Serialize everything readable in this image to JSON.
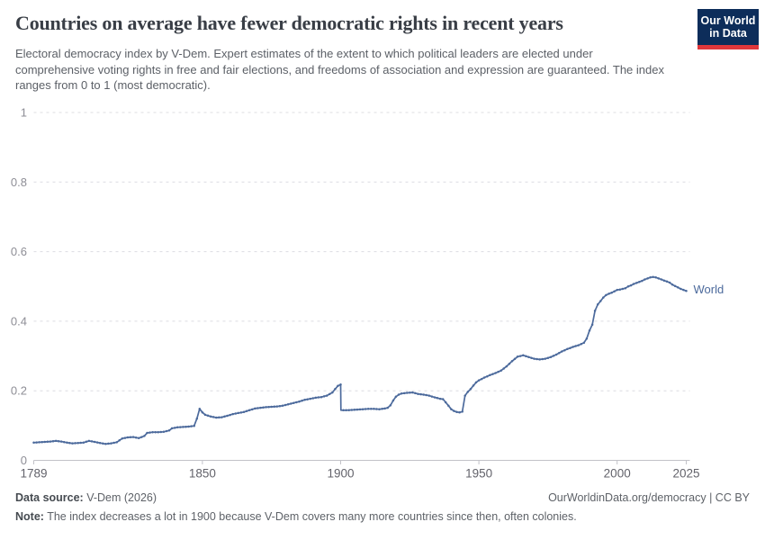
{
  "header": {
    "title": "Countries on average have fewer democratic rights in recent years",
    "subtitle": "Electoral democracy index by V-Dem. Expert estimates of the extent to which political leaders are elected under comprehensive voting rights in free and fair elections, and freedoms of association and expression are guaranteed. The index ranges from 0 to 1 (most democratic).",
    "logo": {
      "line1": "Our World",
      "line2": "in Data",
      "bg_color": "#0d2d5a",
      "accent_color": "#e0373b"
    }
  },
  "chart_data": {
    "type": "line",
    "title": "Countries on average have fewer democratic rights in recent years",
    "xlabel": "",
    "ylabel": "Electoral democracy index",
    "xlim": [
      1789,
      2025
    ],
    "ylim": [
      0,
      1
    ],
    "x_ticks": [
      1789,
      1850,
      1900,
      1950,
      2000,
      2025
    ],
    "y_ticks": [
      0,
      0.2,
      0.4,
      0.6,
      0.8,
      1
    ],
    "grid": "horizontal-dashed",
    "legend_position": "label-at-line-end",
    "colors": {
      "gridline": "#dcdce2",
      "axis": "#c2c2c8",
      "y_tick_label": "#8e8e96",
      "x_tick_label": "#63636b"
    },
    "series": [
      {
        "name": "World",
        "color": "#4c6a9c",
        "points": [
          [
            1789,
            0.051
          ],
          [
            1791,
            0.052
          ],
          [
            1793,
            0.053
          ],
          [
            1795,
            0.054
          ],
          [
            1797,
            0.056
          ],
          [
            1799,
            0.054
          ],
          [
            1801,
            0.051
          ],
          [
            1803,
            0.049
          ],
          [
            1805,
            0.05
          ],
          [
            1807,
            0.051
          ],
          [
            1809,
            0.056
          ],
          [
            1811,
            0.053
          ],
          [
            1813,
            0.05
          ],
          [
            1815,
            0.047
          ],
          [
            1817,
            0.049
          ],
          [
            1819,
            0.052
          ],
          [
            1821,
            0.063
          ],
          [
            1823,
            0.066
          ],
          [
            1825,
            0.067
          ],
          [
            1827,
            0.064
          ],
          [
            1829,
            0.07
          ],
          [
            1830,
            0.079
          ],
          [
            1832,
            0.081
          ],
          [
            1834,
            0.081
          ],
          [
            1836,
            0.082
          ],
          [
            1838,
            0.086
          ],
          [
            1839,
            0.092
          ],
          [
            1841,
            0.095
          ],
          [
            1843,
            0.096
          ],
          [
            1845,
            0.097
          ],
          [
            1847,
            0.099
          ],
          [
            1848,
            0.12
          ],
          [
            1849,
            0.148
          ],
          [
            1850,
            0.138
          ],
          [
            1851,
            0.131
          ],
          [
            1853,
            0.126
          ],
          [
            1855,
            0.123
          ],
          [
            1857,
            0.124
          ],
          [
            1859,
            0.128
          ],
          [
            1861,
            0.133
          ],
          [
            1863,
            0.136
          ],
          [
            1865,
            0.139
          ],
          [
            1867,
            0.144
          ],
          [
            1869,
            0.149
          ],
          [
            1871,
            0.151
          ],
          [
            1873,
            0.153
          ],
          [
            1875,
            0.154
          ],
          [
            1877,
            0.155
          ],
          [
            1879,
            0.157
          ],
          [
            1881,
            0.161
          ],
          [
            1883,
            0.165
          ],
          [
            1885,
            0.169
          ],
          [
            1887,
            0.174
          ],
          [
            1889,
            0.177
          ],
          [
            1891,
            0.18
          ],
          [
            1893,
            0.182
          ],
          [
            1895,
            0.186
          ],
          [
            1897,
            0.195
          ],
          [
            1898,
            0.205
          ],
          [
            1899,
            0.214
          ],
          [
            1900,
            0.218
          ],
          [
            1900.1,
            0.144
          ],
          [
            1902,
            0.144
          ],
          [
            1904,
            0.145
          ],
          [
            1906,
            0.146
          ],
          [
            1908,
            0.147
          ],
          [
            1910,
            0.148
          ],
          [
            1912,
            0.148
          ],
          [
            1914,
            0.147
          ],
          [
            1916,
            0.149
          ],
          [
            1917,
            0.151
          ],
          [
            1918,
            0.158
          ],
          [
            1919,
            0.172
          ],
          [
            1920,
            0.183
          ],
          [
            1921,
            0.189
          ],
          [
            1922,
            0.192
          ],
          [
            1924,
            0.194
          ],
          [
            1926,
            0.195
          ],
          [
            1928,
            0.191
          ],
          [
            1930,
            0.189
          ],
          [
            1932,
            0.186
          ],
          [
            1934,
            0.181
          ],
          [
            1936,
            0.177
          ],
          [
            1937,
            0.176
          ],
          [
            1938,
            0.167
          ],
          [
            1939,
            0.157
          ],
          [
            1940,
            0.147
          ],
          [
            1941,
            0.142
          ],
          [
            1942,
            0.139
          ],
          [
            1943,
            0.138
          ],
          [
            1944,
            0.14
          ],
          [
            1945,
            0.186
          ],
          [
            1946,
            0.197
          ],
          [
            1947,
            0.205
          ],
          [
            1948,
            0.215
          ],
          [
            1949,
            0.224
          ],
          [
            1950,
            0.23
          ],
          [
            1952,
            0.238
          ],
          [
            1954,
            0.245
          ],
          [
            1956,
            0.251
          ],
          [
            1958,
            0.258
          ],
          [
            1960,
            0.27
          ],
          [
            1962,
            0.285
          ],
          [
            1964,
            0.298
          ],
          [
            1966,
            0.302
          ],
          [
            1968,
            0.297
          ],
          [
            1970,
            0.292
          ],
          [
            1972,
            0.29
          ],
          [
            1974,
            0.292
          ],
          [
            1976,
            0.297
          ],
          [
            1978,
            0.304
          ],
          [
            1980,
            0.313
          ],
          [
            1982,
            0.32
          ],
          [
            1984,
            0.326
          ],
          [
            1986,
            0.331
          ],
          [
            1988,
            0.338
          ],
          [
            1989,
            0.35
          ],
          [
            1990,
            0.373
          ],
          [
            1991,
            0.39
          ],
          [
            1992,
            0.43
          ],
          [
            1993,
            0.448
          ],
          [
            1994,
            0.458
          ],
          [
            1995,
            0.468
          ],
          [
            1996,
            0.475
          ],
          [
            1997,
            0.479
          ],
          [
            1998,
            0.482
          ],
          [
            1999,
            0.486
          ],
          [
            2000,
            0.49
          ],
          [
            2001,
            0.491
          ],
          [
            2002,
            0.493
          ],
          [
            2003,
            0.495
          ],
          [
            2004,
            0.5
          ],
          [
            2005,
            0.503
          ],
          [
            2006,
            0.507
          ],
          [
            2007,
            0.51
          ],
          [
            2008,
            0.513
          ],
          [
            2009,
            0.516
          ],
          [
            2010,
            0.52
          ],
          [
            2011,
            0.523
          ],
          [
            2012,
            0.526
          ],
          [
            2013,
            0.527
          ],
          [
            2014,
            0.526
          ],
          [
            2015,
            0.523
          ],
          [
            2016,
            0.52
          ],
          [
            2017,
            0.517
          ],
          [
            2018,
            0.514
          ],
          [
            2019,
            0.511
          ],
          [
            2020,
            0.505
          ],
          [
            2021,
            0.501
          ],
          [
            2022,
            0.497
          ],
          [
            2023,
            0.493
          ],
          [
            2024,
            0.49
          ],
          [
            2025,
            0.487
          ]
        ]
      }
    ]
  },
  "footer": {
    "datasource_label": "Data source:",
    "datasource_value": " V-Dem (2026)",
    "link_text": "OurWorldinData.org/democracy | CC BY",
    "note_label": "Note:",
    "note_value": " The index decreases a lot in 1900 because V-Dem covers many more countries since then, often colonies."
  }
}
